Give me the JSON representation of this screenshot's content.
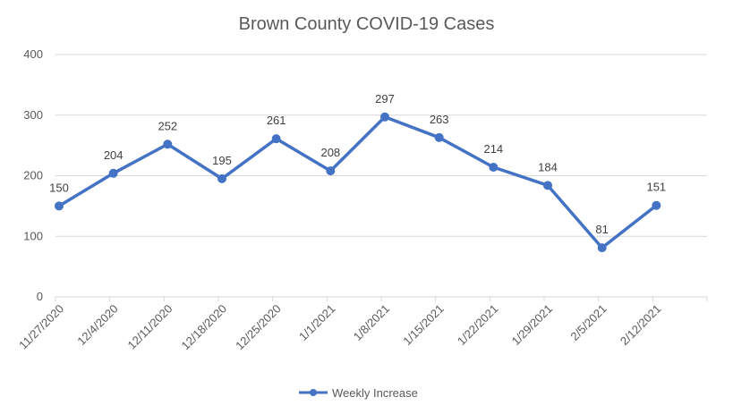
{
  "chart_data": {
    "type": "line",
    "title": "Brown County COVID-19 Cases",
    "xlabel": "",
    "ylabel": "",
    "categories": [
      "11/27/2020",
      "12/4/2020",
      "12/11/2020",
      "12/18/2020",
      "12/25/2020",
      "1/1/2021",
      "1/8/2021",
      "1/15/2021",
      "1/22/2021",
      "1/29/2021",
      "2/5/2021",
      "2/12/2021"
    ],
    "series": [
      {
        "name": "Weekly Increase",
        "values": [
          150,
          204,
          252,
          195,
          261,
          208,
          297,
          263,
          214,
          184,
          81,
          151
        ],
        "color": "#4472c4"
      }
    ],
    "ylim": [
      0,
      400
    ],
    "yticks": [
      0,
      100,
      200,
      300,
      400
    ],
    "grid": true,
    "data_labels": true,
    "legend": "bottom-center"
  }
}
